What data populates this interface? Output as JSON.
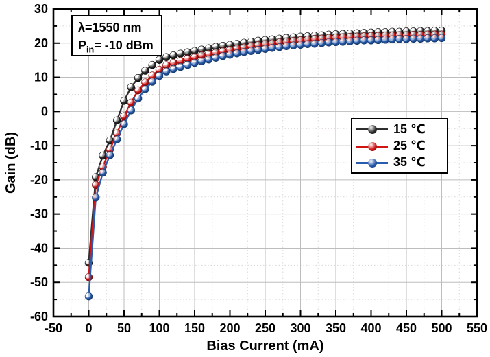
{
  "figure": {
    "annotation": {
      "line1": "λ=1550 nm",
      "pin_prefix": "P",
      "pin_sub": "in",
      "pin_suffix": "= -10 dBm"
    }
  },
  "axes": {
    "x": {
      "label": "Bias Current (mA)",
      "min": -50,
      "max": 550,
      "major_step": 50,
      "minor_step": 25,
      "major_ticks": [
        -50,
        0,
        50,
        100,
        150,
        200,
        250,
        300,
        350,
        400,
        450,
        500,
        550
      ]
    },
    "y": {
      "label": "Gain (dB)",
      "min": -60,
      "max": 30,
      "major_step": 10,
      "minor_step": 5,
      "major_ticks": [
        -60,
        -50,
        -40,
        -30,
        -20,
        -10,
        0,
        10,
        20,
        30
      ]
    }
  },
  "legend": {
    "items": [
      {
        "label": "15 ℃",
        "series": 0
      },
      {
        "label": "25 ℃",
        "series": 1
      },
      {
        "label": "35 ℃",
        "series": 2
      }
    ]
  },
  "style": {
    "frame_color": "#000000",
    "grid_major_color": "#bdbdbd",
    "grid_minor_color": "#ddd4d4",
    "tick_color": "#000000",
    "text_color": "#000000"
  },
  "chart_data": {
    "type": "line",
    "title": "",
    "xlabel": "Bias Current (mA)",
    "ylabel": "Gain (dB)",
    "xlim": [
      -50,
      550
    ],
    "ylim": [
      -60,
      30
    ],
    "grid": true,
    "legend_position": "right-middle",
    "marker": "3d-ball",
    "x": [
      0,
      10,
      20,
      30,
      40,
      50,
      60,
      70,
      80,
      90,
      100,
      110,
      120,
      130,
      140,
      150,
      160,
      170,
      180,
      190,
      200,
      210,
      220,
      230,
      240,
      250,
      260,
      270,
      280,
      290,
      300,
      310,
      320,
      330,
      340,
      350,
      360,
      370,
      380,
      390,
      400,
      410,
      420,
      430,
      440,
      450,
      460,
      470,
      480,
      490,
      500
    ],
    "series": [
      {
        "name": "15 ℃",
        "color": "#2e2e2e",
        "color_dark": "#0a0a0a",
        "values": [
          -44.3,
          -19.2,
          -12.9,
          -8.5,
          -2.6,
          3.1,
          7.1,
          9.8,
          11.9,
          13.6,
          15.1,
          15.9,
          16.4,
          16.9,
          17.3,
          17.7,
          18.1,
          18.5,
          18.9,
          19.2,
          19.5,
          19.8,
          20.1,
          20.4,
          20.7,
          20.9,
          21.1,
          21.3,
          21.5,
          21.7,
          21.9,
          22.0,
          22.2,
          22.3,
          22.5,
          22.6,
          22.7,
          22.8,
          22.9,
          23.0,
          23.1,
          23.2,
          23.2,
          23.3,
          23.3,
          23.4,
          23.4,
          23.5,
          23.5,
          23.6,
          23.6
        ]
      },
      {
        "name": "25 ℃",
        "color": "#cf1616",
        "color_dark": "#730808",
        "values": [
          -48.5,
          -21.5,
          -16.2,
          -11.1,
          -6.4,
          -1.4,
          2.6,
          6.2,
          8.5,
          10.5,
          12.2,
          13.5,
          14.2,
          14.8,
          15.4,
          15.9,
          16.4,
          16.8,
          17.2,
          17.6,
          18.0,
          18.4,
          18.7,
          19.1,
          19.4,
          19.7,
          19.9,
          20.2,
          20.4,
          20.6,
          20.8,
          21.0,
          21.2,
          21.3,
          21.5,
          21.6,
          21.7,
          21.8,
          21.9,
          22.0,
          22.1,
          22.1,
          22.2,
          22.2,
          22.3,
          22.3,
          22.4,
          22.4,
          22.5,
          22.5,
          22.5
        ]
      },
      {
        "name": "35 ℃",
        "color": "#2a5cad",
        "color_dark": "#123768",
        "values": [
          -54.1,
          -25.2,
          -17.9,
          -12.8,
          -8.2,
          -3.7,
          0.3,
          3.8,
          6.5,
          8.7,
          10.4,
          11.7,
          12.4,
          13.0,
          13.6,
          14.2,
          14.7,
          15.2,
          15.7,
          16.2,
          16.6,
          17.0,
          17.4,
          17.7,
          18.0,
          18.3,
          18.6,
          18.8,
          19.1,
          19.3,
          19.5,
          19.7,
          19.8,
          20.0,
          20.2,
          20.3,
          20.4,
          20.5,
          20.7,
          20.8,
          20.8,
          20.9,
          21.0,
          21.1,
          21.2,
          21.2,
          21.3,
          21.3,
          21.4,
          21.4,
          21.5
        ]
      }
    ]
  }
}
